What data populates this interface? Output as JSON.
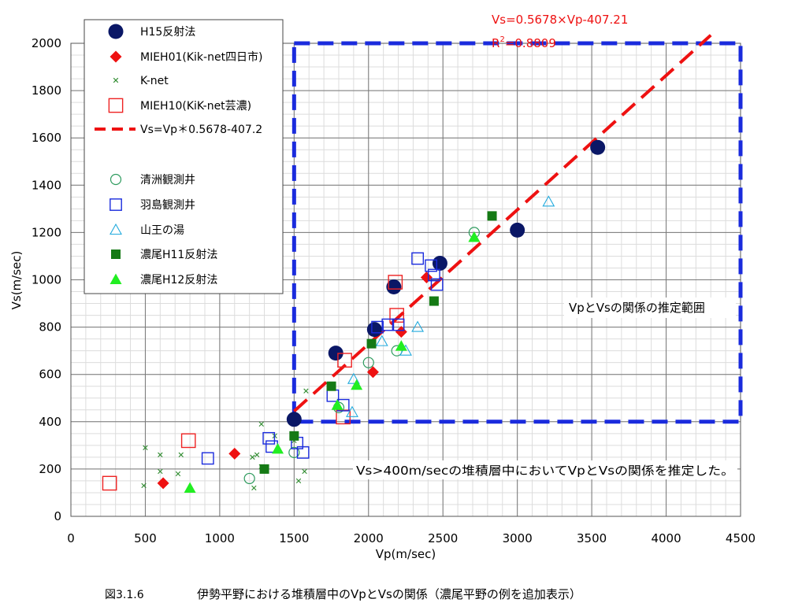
{
  "caption": {
    "fig_no": "図3.1.6",
    "text": "伊勢平野における堆積層中のVpとVsの関係（濃尾平野の例を追加表示）"
  },
  "chart_data": {
    "type": "scatter",
    "xlabel": "Vp(m/sec)",
    "ylabel": "Vs(m/sec)",
    "xlim": [
      0,
      4500
    ],
    "ylim": [
      0,
      2000
    ],
    "x_ticks": [
      0,
      500,
      1000,
      1500,
      2000,
      2500,
      3000,
      3500,
      4000,
      4500
    ],
    "y_ticks": [
      0,
      200,
      400,
      600,
      800,
      1000,
      1200,
      1400,
      1600,
      1800,
      2000
    ],
    "grid": true,
    "minor_grid_step": {
      "x": 100,
      "y": 50
    },
    "legend_position": "top-left",
    "regression": {
      "label": "Vs=Vp＊0.5678-407.2",
      "equation": "Vs=0.5678×Vp-407.21",
      "r2_prefix": "R",
      "r2_sup": "2",
      "r2_value": "=0.8809",
      "slope": 0.5678,
      "intercept": -407.21,
      "x_range": [
        1500,
        4300
      ],
      "color": "#ee1111"
    },
    "estimation_range": {
      "x": [
        1500,
        4500
      ],
      "y": [
        400,
        2000
      ],
      "label": "VpとVsの関係の推定範囲",
      "color": "#1a2bdd"
    },
    "annotation": "Vs>400m/secの堆積層中においてVpとVsの関係を推定した。",
    "series": [
      {
        "name": "H15反射法",
        "marker": "circle-filled",
        "color": "#0a1766",
        "points": [
          [
            1500,
            410
          ],
          [
            1780,
            690
          ],
          [
            2040,
            790
          ],
          [
            2170,
            970
          ],
          [
            2480,
            1070
          ],
          [
            3000,
            1210
          ],
          [
            3540,
            1560
          ]
        ]
      },
      {
        "name": "MIEH01(Kik-net四日市)",
        "marker": "diamond-filled",
        "color": "#ee1111",
        "points": [
          [
            620,
            140
          ],
          [
            1100,
            265
          ],
          [
            2030,
            610
          ],
          [
            2220,
            780
          ],
          [
            2390,
            1010
          ]
        ]
      },
      {
        "name": "K-net",
        "marker": "cross",
        "color": "#2e8b2e",
        "points": [
          [
            490,
            130
          ],
          [
            500,
            290
          ],
          [
            600,
            190
          ],
          [
            600,
            260
          ],
          [
            720,
            180
          ],
          [
            740,
            260
          ],
          [
            1230,
            120
          ],
          [
            1220,
            250
          ],
          [
            1250,
            260
          ],
          [
            1280,
            390
          ],
          [
            1280,
            210
          ],
          [
            1370,
            340
          ],
          [
            1530,
            150
          ],
          [
            1570,
            190
          ],
          [
            1580,
            530
          ],
          [
            1500,
            320
          ]
        ]
      },
      {
        "name": "MIEH10(KiK-net芸濃)",
        "marker": "square-open",
        "color": "#ee2222",
        "points": [
          [
            260,
            140
          ],
          [
            790,
            320
          ],
          [
            1830,
            420
          ],
          [
            1840,
            660
          ],
          [
            2180,
            990
          ],
          [
            2190,
            850
          ]
        ]
      },
      {
        "name": "清洲観測井",
        "marker": "circle-open",
        "color": "#2e9b5e",
        "points": [
          [
            1200,
            160
          ],
          [
            1500,
            270
          ],
          [
            1800,
            460
          ],
          [
            2000,
            650
          ],
          [
            2190,
            700
          ],
          [
            2710,
            1200
          ]
        ]
      },
      {
        "name": "羽島観測井",
        "marker": "square-open",
        "color": "#1a2bdd",
        "points": [
          [
            920,
            245
          ],
          [
            1330,
            330
          ],
          [
            1350,
            295
          ],
          [
            1520,
            310
          ],
          [
            1560,
            270
          ],
          [
            1760,
            510
          ],
          [
            1830,
            470
          ],
          [
            2060,
            800
          ],
          [
            2130,
            810
          ],
          [
            2200,
            810
          ],
          [
            2330,
            1090
          ],
          [
            2420,
            1060
          ],
          [
            2440,
            1020
          ],
          [
            2460,
            980
          ]
        ]
      },
      {
        "name": "山王の湯",
        "marker": "triangle-open",
        "color": "#22aadd",
        "points": [
          [
            1890,
            440
          ],
          [
            1900,
            580
          ],
          [
            2090,
            740
          ],
          [
            2250,
            700
          ],
          [
            2330,
            800
          ],
          [
            3210,
            1330
          ]
        ]
      },
      {
        "name": "濃尾H11反射法",
        "marker": "square-filled",
        "color": "#157a15",
        "points": [
          [
            1300,
            200
          ],
          [
            1500,
            340
          ],
          [
            1750,
            550
          ],
          [
            2020,
            730
          ],
          [
            2440,
            910
          ],
          [
            2830,
            1270
          ]
        ]
      },
      {
        "name": "濃尾H12反射法",
        "marker": "triangle-filled",
        "color": "#22ee22",
        "points": [
          [
            800,
            120
          ],
          [
            1390,
            285
          ],
          [
            1790,
            470
          ],
          [
            1920,
            555
          ],
          [
            2220,
            720
          ],
          [
            2710,
            1180
          ]
        ]
      }
    ]
  }
}
